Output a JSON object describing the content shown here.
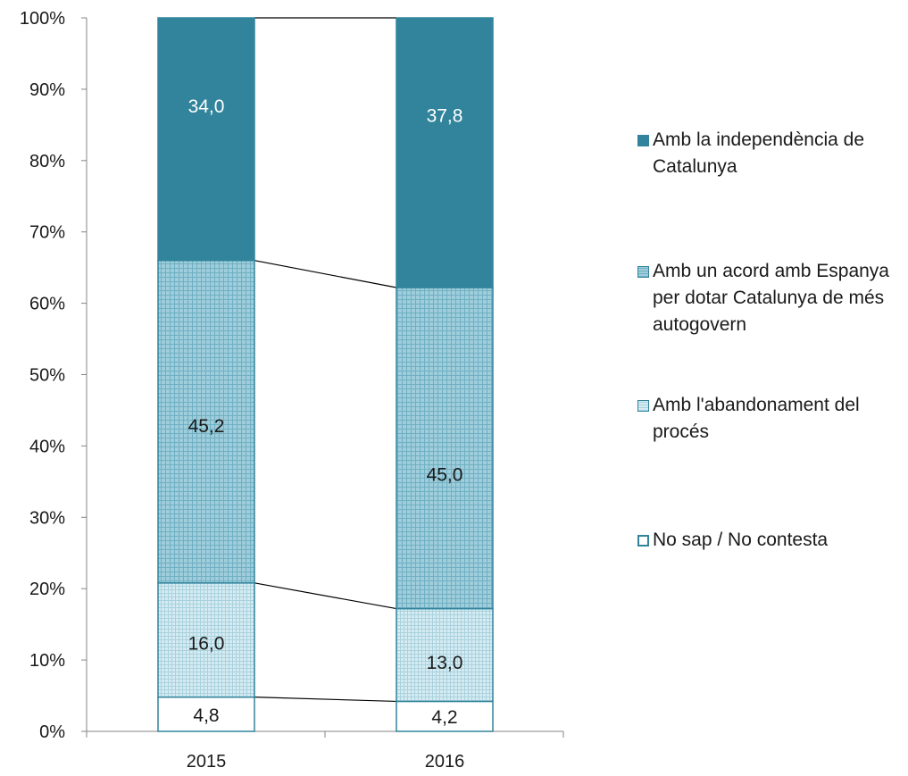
{
  "chart_data": {
    "type": "bar",
    "stacked": true,
    "normalized_percent": true,
    "categories": [
      "2015",
      "2016"
    ],
    "series": [
      {
        "name": "No sap / No contesta",
        "values": [
          4.8,
          4.2
        ],
        "labels": [
          "4,8",
          "4,2"
        ],
        "color": "#ffffff",
        "border": "#31849b",
        "pattern": "none"
      },
      {
        "name": "Amb l'abandonament del procés",
        "values": [
          16.0,
          13.0
        ],
        "labels": [
          "16,0",
          "13,0"
        ],
        "color": "#d2e9f1",
        "border": "#31849b",
        "pattern": "fine-grid"
      },
      {
        "name": "Amb un acord amb Espanya per dotar Catalunya de més autogovern",
        "values": [
          45.2,
          45.0
        ],
        "labels": [
          "45,2",
          "45,0"
        ],
        "color": "#93c7d6",
        "border": "#31849b",
        "pattern": "grid"
      },
      {
        "name": "Amb la independència de Catalunya",
        "values": [
          34.0,
          37.8
        ],
        "labels": [
          "34,0",
          "37,8"
        ],
        "color": "#31849b",
        "border": "#31849b",
        "pattern": "solid"
      }
    ],
    "ylim": [
      0,
      100
    ],
    "yticks": [
      "0%",
      "10%",
      "20%",
      "30%",
      "40%",
      "50%",
      "60%",
      "70%",
      "80%",
      "90%",
      "100%"
    ],
    "xlabel": "",
    "ylabel": "",
    "title": "",
    "grid": false,
    "series_lines": true,
    "legend_position": "right"
  },
  "legend": [
    {
      "lines": [
        "Amb la independència de",
        "Catalunya"
      ],
      "series_index": 3
    },
    {
      "lines": [
        "Amb un acord amb Espanya",
        "per dotar Catalunya de més",
        "autogovern"
      ],
      "series_index": 2
    },
    {
      "lines": [
        "Amb l'abandonament del",
        "procés"
      ],
      "series_index": 1
    },
    {
      "lines": [
        "No sap / No contesta"
      ],
      "series_index": 0
    }
  ]
}
